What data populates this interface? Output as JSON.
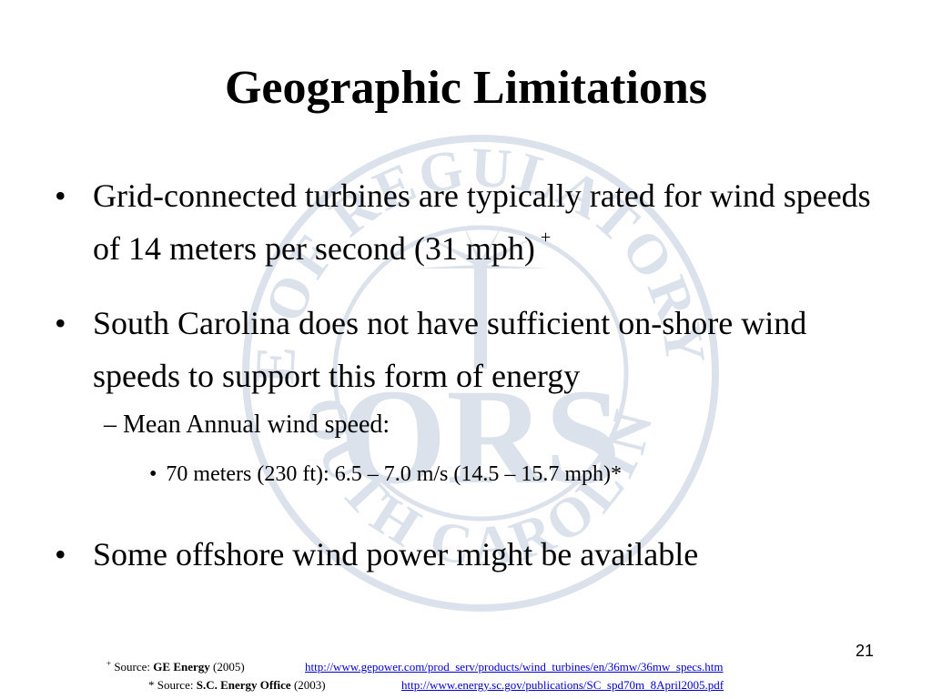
{
  "slide": {
    "title": "Geographic Limitations",
    "bullets": [
      {
        "text": "Grid-connected turbines are typically rated for wind speeds of 14 meters per second (31 mph)",
        "mark": "+"
      },
      {
        "text": "South Carolina does not have sufficient on-shore wind speeds to support this form of energy",
        "sub": "– Mean Annual wind speed:",
        "subsub": "70 meters (230 ft): 6.5 – 7.0 m/s (14.5 – 15.7 mph)*"
      },
      {
        "text": "Some offshore wind power might be available"
      }
    ],
    "bullet_symbol": "•",
    "slide_number": "21"
  },
  "footnotes": [
    {
      "mark": "+",
      "prefix": "Source:",
      "org": "GE Energy",
      "year": "(2005)",
      "url": "http://www.gepower.com/prod_serv/products/wind_turbines/en/36mw/36mw_specs.htm"
    },
    {
      "mark": "*",
      "prefix": "Source:",
      "org": "S.C. Energy Office",
      "year": "(2003)",
      "url": "http://www.energy.sc.gov/publications/SC_spd70m_8April2005.pdf"
    }
  ],
  "watermark": {
    "top_text": "OFFICE OF REGULATORY STAFF",
    "bottom_text": "SOUTH CAROLINA",
    "center_text": "ORS",
    "color": "#2b4f86"
  }
}
